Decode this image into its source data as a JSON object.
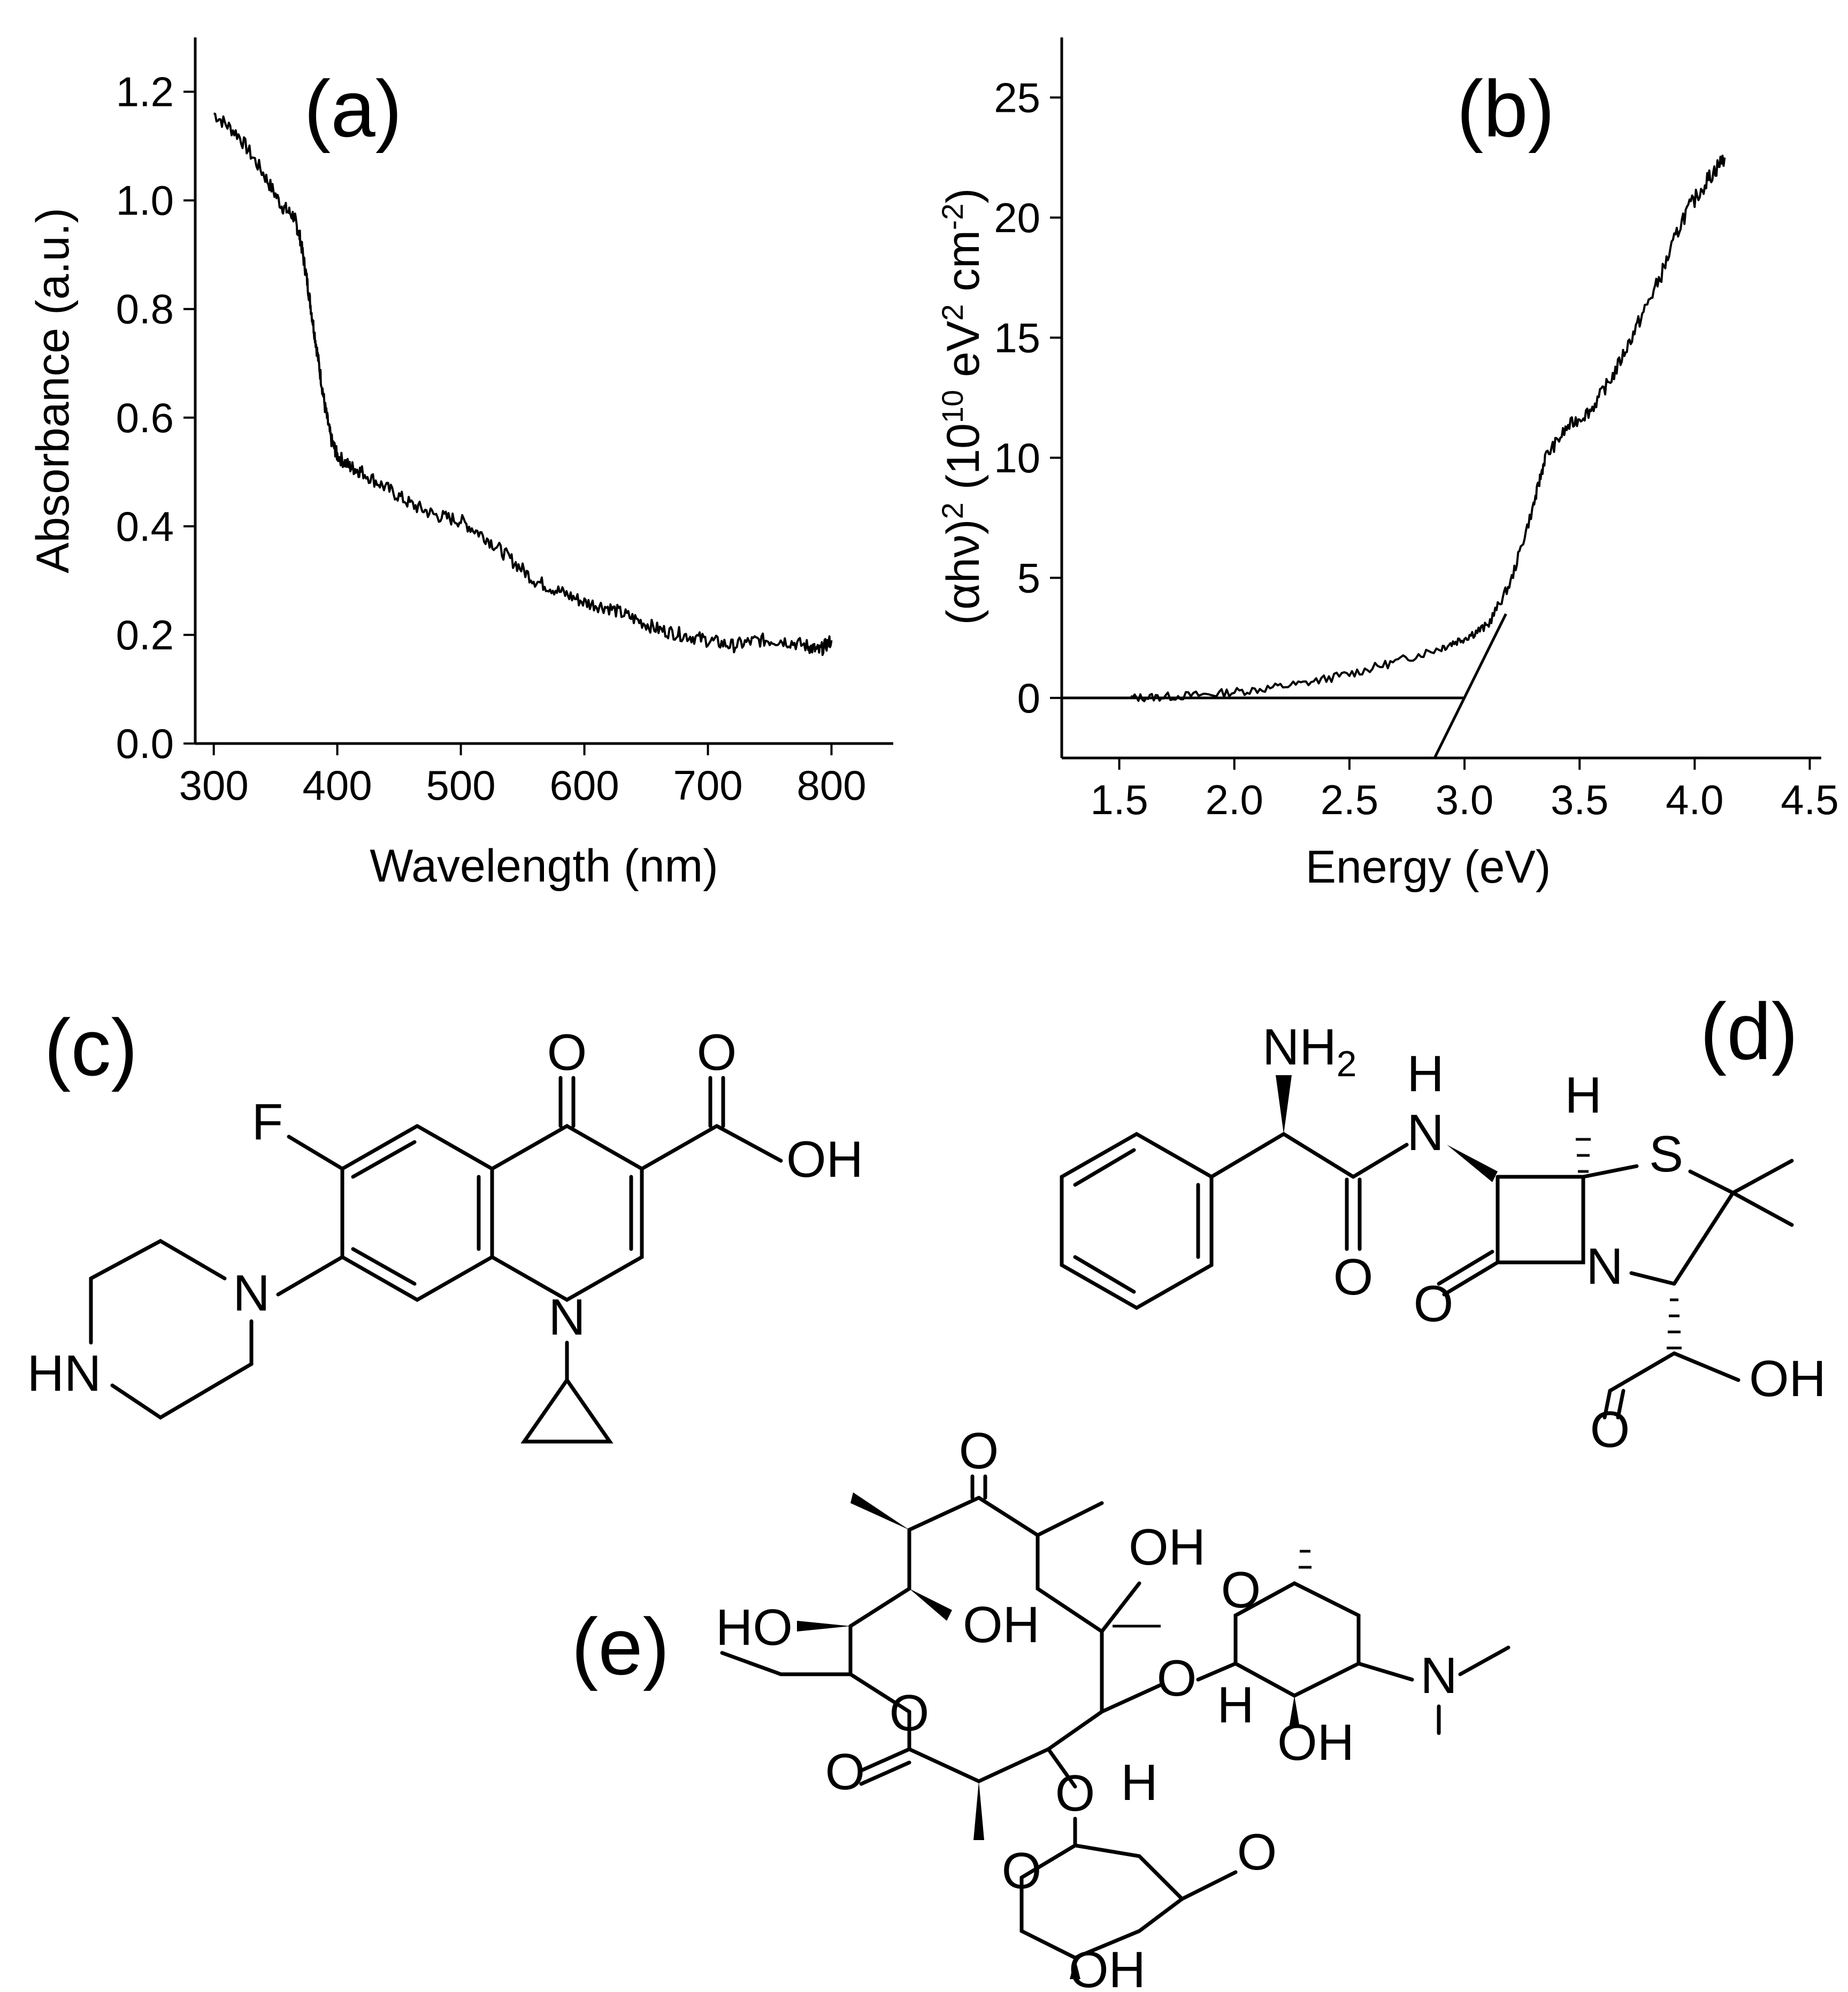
{
  "figure": {
    "panels": {
      "a": "(a)",
      "b": "(b)",
      "c": "(c)",
      "d": "(d)",
      "e": "(e)"
    }
  },
  "chart_data": [
    {
      "id": "a",
      "type": "line",
      "xlabel": "Wavelength (nm)",
      "ylabel": "Absorbance (a.u.)",
      "xlim": [
        285,
        850
      ],
      "ylim": [
        0,
        1.3
      ],
      "xticks": [
        300,
        400,
        500,
        600,
        700,
        800
      ],
      "xtick_labels": [
        "300",
        "400",
        "500",
        "600",
        "700",
        "800"
      ],
      "yticks": [
        0.0,
        0.2,
        0.4,
        0.6,
        0.8,
        1.0,
        1.2
      ],
      "ytick_labels": [
        "0.0",
        "0.2",
        "0.4",
        "0.6",
        "0.8",
        "1.0",
        "1.2"
      ],
      "series": [
        {
          "x": [
            300,
            320,
            340,
            355,
            365,
            370,
            375,
            380,
            385,
            390,
            395,
            400,
            410,
            420,
            440,
            460,
            480,
            500,
            520,
            540,
            560,
            580,
            600,
            620,
            640,
            660,
            680,
            700,
            720,
            740,
            760,
            780,
            790,
            800
          ],
          "y": [
            1.16,
            1.12,
            1.05,
            0.99,
            0.97,
            0.93,
            0.86,
            0.78,
            0.7,
            0.62,
            0.56,
            0.53,
            0.51,
            0.5,
            0.47,
            0.44,
            0.42,
            0.41,
            0.38,
            0.34,
            0.3,
            0.28,
            0.26,
            0.25,
            0.23,
            0.21,
            0.2,
            0.19,
            0.18,
            0.19,
            0.19,
            0.18,
            0.17,
            0.19
          ]
        }
      ]
    },
    {
      "id": "b",
      "type": "line",
      "xlabel": "Energy (eV)",
      "ylabel_parts": [
        "(αhν)",
        "2",
        " (10",
        "10",
        " eV",
        "2",
        " cm",
        "-2",
        ")"
      ],
      "xlim": [
        1.25,
        4.55
      ],
      "ylim": [
        -2.5,
        27.5
      ],
      "xticks": [
        1.5,
        2.0,
        2.5,
        3.0,
        3.5,
        4.0,
        4.5
      ],
      "xtick_labels": [
        "1.5",
        "2.0",
        "2.5",
        "3.0",
        "3.5",
        "4.0",
        "4.5"
      ],
      "yticks": [
        0,
        5,
        10,
        15,
        20,
        25
      ],
      "ytick_labels": [
        "0",
        "5",
        "10",
        "15",
        "20",
        "25"
      ],
      "series": [
        {
          "x": [
            1.55,
            1.7,
            1.9,
            2.1,
            2.3,
            2.5,
            2.7,
            2.9,
            3.0,
            3.1,
            3.2,
            3.3,
            3.35,
            3.45,
            3.55,
            3.65,
            3.75,
            3.85,
            3.95,
            4.05,
            4.13
          ],
          "y": [
            0.0,
            0.05,
            0.15,
            0.35,
            0.6,
            1.0,
            1.5,
            2.1,
            2.5,
            3.0,
            4.8,
            8.0,
            10.0,
            11.3,
            12.0,
            13.5,
            15.5,
            17.5,
            20.0,
            21.5,
            22.5
          ]
        }
      ],
      "baseline": {
        "x": [
          1.25,
          3.0
        ],
        "y": [
          0,
          0
        ]
      },
      "fit_line": {
        "x": [
          2.87,
          3.18
        ],
        "y": [
          -2.5,
          3.5
        ]
      }
    }
  ],
  "structures": {
    "c": {
      "labels": {
        "F": "F",
        "O_keto": "O",
        "O_acid": "O",
        "OH": "OH",
        "N1": "N",
        "N_pip": "N",
        "HN": "HN"
      }
    },
    "d": {
      "labels": {
        "NH2": "NH",
        "NH2_sub": "2",
        "H_amide": "H",
        "N_amide": "N",
        "H_ring": "H",
        "S": "S",
        "N_ring": "N",
        "O_amide": "O",
        "O_lactam": "O",
        "O_acid": "O",
        "OH": "OH"
      }
    },
    "e": {
      "labels": {
        "O_ketone": "O",
        "OH_top": "OH",
        "HO_left": "HO",
        "OH_mid": "OH",
        "O_ring_lactone": "O",
        "O_lactone": "O",
        "O_glyco1": "O",
        "O_sugar1": "O",
        "H_sugar1": "H",
        "OH_sugar1": "OH",
        "N_dim": "N",
        "O_glyco2": "O",
        "H_sugar2": "H",
        "O_sugar2": "O",
        "O_methoxy": "O",
        "OH_sugar2": "OH"
      }
    }
  }
}
